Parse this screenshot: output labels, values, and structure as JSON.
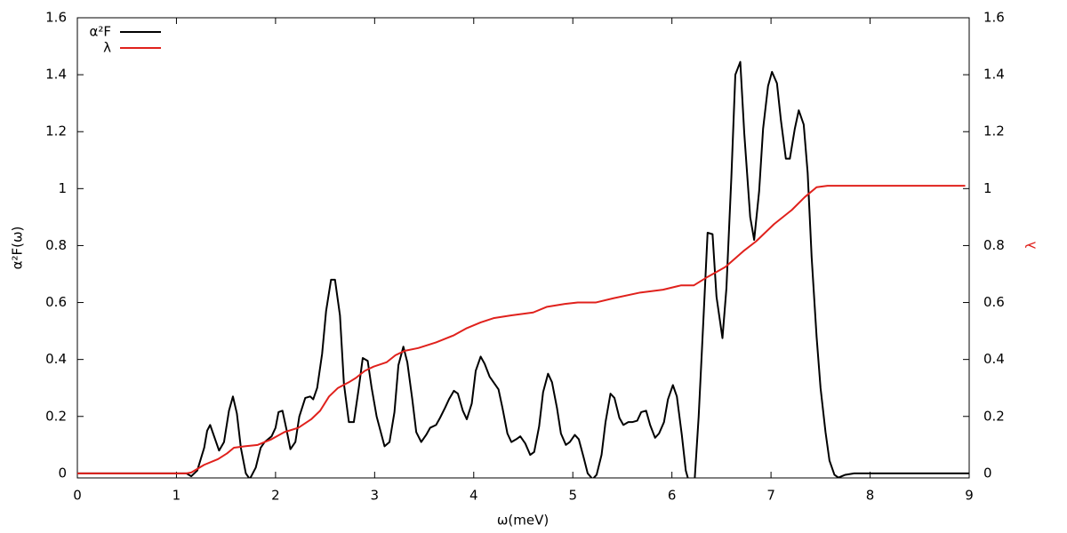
{
  "chart_data": {
    "type": "line",
    "xlabel": "ω(meV)",
    "ylabel": "α²F(ω)",
    "y2label": "λ",
    "xlim": [
      0,
      9
    ],
    "xticks": [
      0,
      1,
      2,
      3,
      4,
      5,
      6,
      7,
      8,
      9
    ],
    "ylim": [
      -0.016,
      1.6
    ],
    "yticks": [
      0,
      0.2,
      0.4,
      0.6,
      0.8,
      1,
      1.2,
      1.4,
      1.6
    ],
    "y2lim": [
      -0.016,
      1.6
    ],
    "y2ticks": [
      0,
      0.2,
      0.4,
      0.6,
      0.8,
      1,
      1.2,
      1.4,
      1.6
    ],
    "legend": "top-left",
    "series": [
      {
        "name": "α²F",
        "color": "#000000",
        "x": [
          0,
          1.1,
          1.15,
          1.21,
          1.28,
          1.31,
          1.34,
          1.43,
          1.48,
          1.53,
          1.57,
          1.61,
          1.65,
          1.7,
          1.74,
          1.8,
          1.85,
          1.89,
          1.96,
          2.0,
          2.03,
          2.07,
          2.11,
          2.15,
          2.2,
          2.24,
          2.3,
          2.35,
          2.38,
          2.42,
          2.47,
          2.51,
          2.56,
          2.6,
          2.65,
          2.69,
          2.74,
          2.79,
          2.84,
          2.88,
          2.93,
          2.97,
          3.02,
          3.1,
          3.15,
          3.2,
          3.24,
          3.29,
          3.33,
          3.38,
          3.42,
          3.47,
          3.52,
          3.56,
          3.62,
          3.66,
          3.71,
          3.75,
          3.8,
          3.84,
          3.89,
          3.93,
          3.98,
          4.02,
          4.07,
          4.11,
          4.16,
          4.2,
          4.25,
          4.29,
          4.34,
          4.38,
          4.43,
          4.47,
          4.52,
          4.57,
          4.61,
          4.66,
          4.7,
          4.75,
          4.79,
          4.84,
          4.88,
          4.93,
          4.97,
          5.02,
          5.06,
          5.11,
          5.15,
          5.2,
          5.24,
          5.29,
          5.33,
          5.38,
          5.42,
          5.47,
          5.51,
          5.56,
          5.6,
          5.65,
          5.69,
          5.74,
          5.78,
          5.83,
          5.87,
          5.92,
          5.96,
          6.01,
          6.05,
          6.1,
          6.14,
          6.18,
          6.23,
          6.27,
          6.32,
          6.36,
          6.41,
          6.45,
          6.51,
          6.55,
          6.6,
          6.64,
          6.69,
          6.73,
          6.79,
          6.83,
          6.88,
          6.92,
          6.97,
          7.01,
          7.06,
          7.1,
          7.15,
          7.19,
          7.24,
          7.28,
          7.33,
          7.37,
          7.41,
          7.46,
          7.5,
          7.55,
          7.59,
          7.64,
          7.68,
          7.75,
          7.84,
          9
        ],
        "values": [
          0,
          0,
          -0.01,
          0.01,
          0.09,
          0.15,
          0.17,
          0.08,
          0.11,
          0.22,
          0.27,
          0.21,
          0.09,
          0,
          -0.02,
          0.02,
          0.09,
          0.11,
          0.13,
          0.16,
          0.215,
          0.22,
          0.155,
          0.085,
          0.11,
          0.2,
          0.265,
          0.27,
          0.26,
          0.3,
          0.42,
          0.57,
          0.68,
          0.68,
          0.555,
          0.315,
          0.18,
          0.18,
          0.3,
          0.405,
          0.395,
          0.3,
          0.2,
          0.095,
          0.11,
          0.215,
          0.38,
          0.445,
          0.39,
          0.26,
          0.145,
          0.11,
          0.135,
          0.16,
          0.17,
          0.195,
          0.23,
          0.26,
          0.29,
          0.28,
          0.22,
          0.19,
          0.245,
          0.36,
          0.41,
          0.385,
          0.34,
          0.32,
          0.295,
          0.23,
          0.14,
          0.11,
          0.12,
          0.13,
          0.105,
          0.065,
          0.075,
          0.165,
          0.285,
          0.35,
          0.32,
          0.23,
          0.14,
          0.1,
          0.11,
          0.135,
          0.12,
          0.055,
          0,
          -0.02,
          -0.005,
          0.065,
          0.18,
          0.28,
          0.265,
          0.195,
          0.17,
          0.18,
          0.18,
          0.185,
          0.215,
          0.22,
          0.17,
          0.125,
          0.14,
          0.18,
          0.26,
          0.31,
          0.27,
          0.135,
          0.01,
          -0.04,
          -0.02,
          0.2,
          0.555,
          0.845,
          0.84,
          0.62,
          0.475,
          0.65,
          1.04,
          1.4,
          1.445,
          1.195,
          0.9,
          0.82,
          0.99,
          1.21,
          1.36,
          1.41,
          1.37,
          1.24,
          1.105,
          1.105,
          1.21,
          1.275,
          1.225,
          1.055,
          0.76,
          0.48,
          0.3,
          0.145,
          0.045,
          -0.005,
          -0.015,
          -0.005,
          0,
          0
        ]
      },
      {
        "name": "λ",
        "color": "#e0211c",
        "axis": "y2",
        "x": [
          0,
          1.1,
          1.15,
          1.28,
          1.42,
          1.51,
          1.58,
          1.69,
          1.82,
          1.96,
          2.09,
          2.23,
          2.36,
          2.45,
          2.54,
          2.63,
          2.74,
          2.81,
          2.9,
          2.99,
          3.12,
          3.21,
          3.3,
          3.44,
          3.62,
          3.8,
          3.93,
          4.07,
          4.2,
          4.38,
          4.6,
          4.74,
          4.92,
          5.05,
          5.23,
          5.41,
          5.68,
          5.91,
          6.09,
          6.22,
          6.36,
          6.54,
          6.72,
          6.85,
          7.03,
          7.21,
          7.34,
          7.46,
          7.57,
          8.96
        ],
        "values": [
          0,
          0,
          0.003,
          0.03,
          0.05,
          0.07,
          0.09,
          0.095,
          0.1,
          0.12,
          0.145,
          0.16,
          0.19,
          0.22,
          0.27,
          0.3,
          0.32,
          0.335,
          0.36,
          0.375,
          0.39,
          0.415,
          0.43,
          0.44,
          0.46,
          0.485,
          0.51,
          0.53,
          0.545,
          0.555,
          0.565,
          0.585,
          0.595,
          0.6,
          0.6,
          0.615,
          0.635,
          0.645,
          0.66,
          0.66,
          0.69,
          0.725,
          0.78,
          0.815,
          0.875,
          0.925,
          0.97,
          1.005,
          1.01,
          1.01
        ]
      }
    ]
  }
}
